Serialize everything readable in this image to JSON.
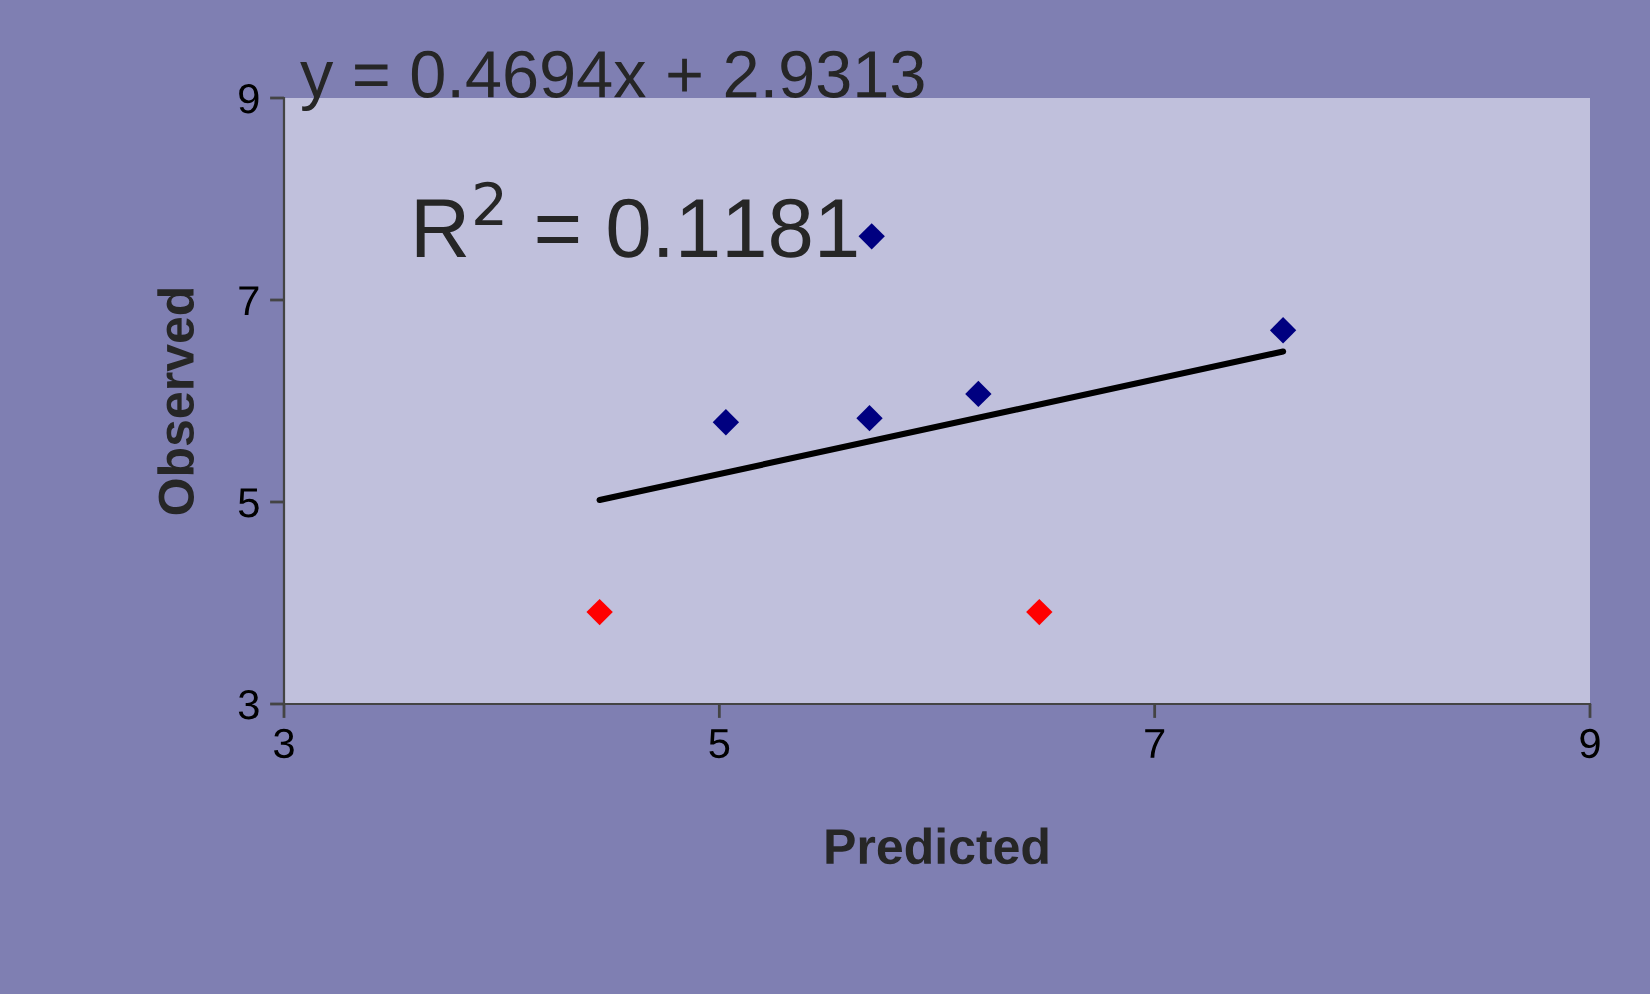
{
  "chart_data": {
    "type": "scatter",
    "xlabel": "Predicted",
    "ylabel": "Observed",
    "annotations": [
      "y = 0.4694x + 2.9313",
      "R$^{2}$ = 0.1181"
    ],
    "series": [
      {
        "color": "#000080",
        "x": [
          5.03,
          5.69,
          6.19,
          7.59,
          5.7
        ],
        "values": [
          5.79,
          5.83,
          6.07,
          6.7,
          7.63
        ]
      },
      {
        "color": "#ff0000",
        "x": [
          4.45,
          6.47
        ],
        "values": [
          3.91,
          3.91
        ]
      },
      {
        "type": "line",
        "marker": "none",
        "color": "#000000",
        "x": [
          4.45,
          7.59
        ],
        "values": [
          5.02,
          6.49
        ]
      }
    ],
    "xlim": [
      3,
      9
    ],
    "ylim": [
      3,
      9
    ],
    "xticks": [
      3,
      5,
      7,
      9
    ],
    "yticks": [
      3,
      5,
      7,
      9
    ],
    "grid": false,
    "marker": "diamond",
    "line_style": "solid"
  }
}
